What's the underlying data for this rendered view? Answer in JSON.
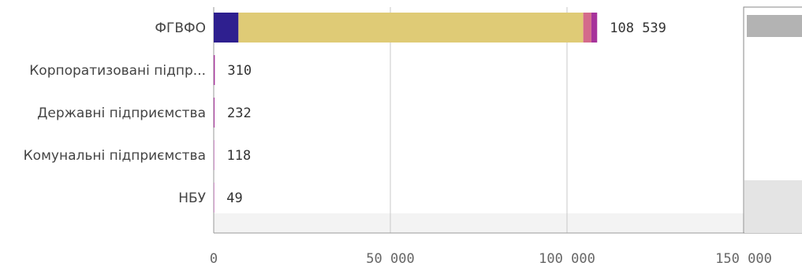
{
  "chart_data": {
    "type": "bar",
    "orientation": "horizontal",
    "stacked": true,
    "categories": [
      "ФГВФО",
      "Корпоратизовані підпр...",
      "Державні підприємства",
      "Комунальні підприємства",
      "НБУ"
    ],
    "value_labels": [
      "108 539",
      "310",
      "232",
      "118",
      "49"
    ],
    "totals": [
      108539,
      310,
      232,
      118,
      49
    ],
    "series": [
      {
        "color": "#2e1f8f",
        "values": [
          7000,
          0,
          0,
          0,
          0
        ]
      },
      {
        "color": "#dfcb76",
        "values": [
          97600,
          0,
          0,
          0,
          0
        ]
      },
      {
        "color": "#d46b8b",
        "values": [
          2300,
          0,
          0,
          0,
          0
        ]
      },
      {
        "color": "#a7339b",
        "values": [
          1639,
          310,
          232,
          118,
          49
        ]
      }
    ],
    "x_ticks": [
      0,
      50000,
      100000,
      150000
    ],
    "x_tick_labels": [
      "0",
      "50 000",
      "100 000",
      "150 000"
    ],
    "xlim": [
      0,
      150000
    ],
    "grid": true,
    "title": "",
    "xlabel": "",
    "ylabel": ""
  }
}
